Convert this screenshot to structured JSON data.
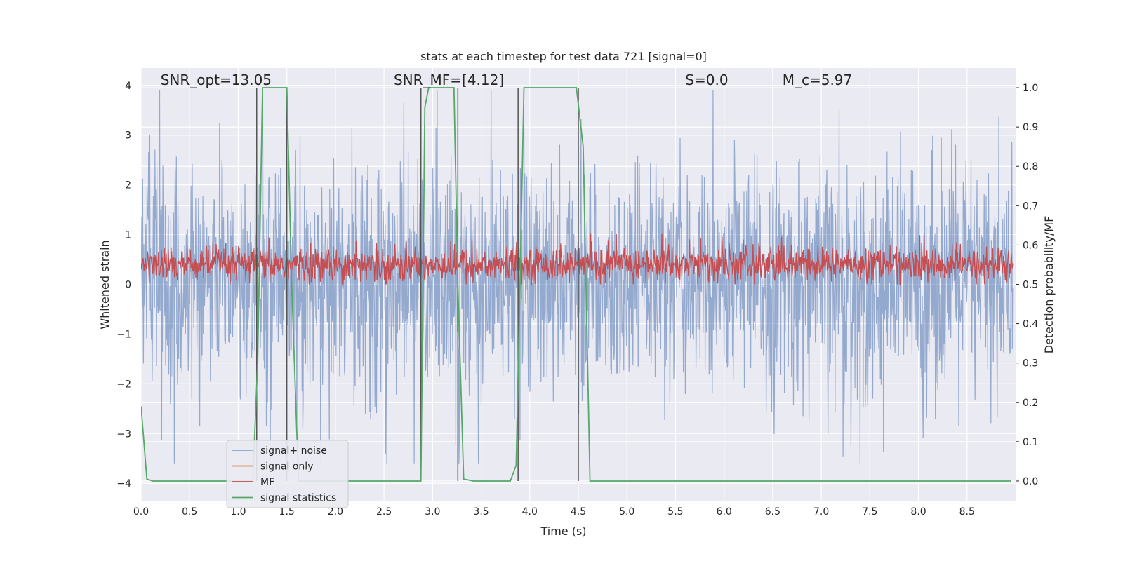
{
  "chart_data": {
    "type": "line",
    "title": "stats at each timestep for test data 721 [signal=0]",
    "xlabel": "Time (s)",
    "ylabel_left": "Whitened strain",
    "ylabel_right": "Detection probability/MF",
    "xlim": [
      0.0,
      9.0
    ],
    "ylim_left": [
      -4.35,
      4.35
    ],
    "ylim_right": [
      -0.05,
      1.05
    ],
    "xticks": [
      "0.0",
      "0.5",
      "1.0",
      "1.5",
      "2.0",
      "2.5",
      "3.0",
      "3.5",
      "4.0",
      "4.5",
      "5.0",
      "5.5",
      "6.0",
      "6.5",
      "7.0",
      "7.5",
      "8.0",
      "8.5"
    ],
    "yticks_left": [
      "−4",
      "−3",
      "−2",
      "−1",
      "0",
      "1",
      "2",
      "3",
      "4"
    ],
    "yticks_right": [
      "0.0",
      "0.1",
      "0.2",
      "0.3",
      "0.4",
      "0.5",
      "0.6",
      "0.7",
      "0.8",
      "0.9",
      "1.0"
    ],
    "grid": true,
    "legend_position": "lower-left",
    "annotations": [
      {
        "id": "snr-opt",
        "text": "SNR_opt=13.05",
        "x": 0.2
      },
      {
        "id": "snr-mf",
        "text": "SNR_MF=[4.12]",
        "x": 2.6
      },
      {
        "id": "s-val",
        "text": "S=0.0",
        "x": 5.6
      },
      {
        "id": "mc-val",
        "text": "M_c=5.97",
        "x": 6.6
      }
    ],
    "series": [
      {
        "name": "signal+ noise",
        "color": "#4c72b0",
        "axis": "left",
        "style": "noise-band",
        "approx_range": [
          -3.6,
          3.9
        ]
      },
      {
        "name": "signal only",
        "color": "#dd8452",
        "axis": "left",
        "values": []
      },
      {
        "name": "MF",
        "color": "#c44e52",
        "axis": "left",
        "style": "noise-band",
        "approx_range": [
          0.0,
          1.0
        ],
        "mean": 0.35
      },
      {
        "name": "signal statistics",
        "color": "#55a868",
        "axis": "right",
        "x": [
          0.0,
          0.06,
          0.12,
          1.15,
          1.2,
          1.25,
          1.5,
          1.55,
          1.62,
          2.88,
          2.92,
          2.96,
          3.22,
          3.26,
          3.32,
          3.42,
          3.8,
          3.86,
          3.9,
          3.94,
          4.48,
          4.55,
          4.62,
          4.7,
          8.95
        ],
        "y": [
          0.19,
          0.005,
          0.0,
          0.0,
          0.3,
          1.0,
          1.0,
          0.5,
          0.0,
          0.0,
          0.95,
          1.0,
          1.0,
          0.5,
          0.005,
          0.0,
          0.0,
          0.04,
          0.5,
          1.0,
          1.0,
          0.85,
          0.0,
          0.0,
          0.0
        ]
      }
    ],
    "vertical_lines": [
      1.19,
      1.5,
      2.88,
      3.26,
      3.88,
      4.5
    ],
    "vertical_line_color": "#555555"
  },
  "legend": {
    "items": [
      {
        "label": "signal+ noise",
        "color": "#4c72b0"
      },
      {
        "label": "signal only",
        "color": "#dd8452"
      },
      {
        "label": "MF",
        "color": "#c44e52"
      },
      {
        "label": "signal statistics",
        "color": "#55a868"
      }
    ]
  },
  "colors": {
    "plot_background": "#eaeaf2",
    "grid": "#ffffff"
  }
}
